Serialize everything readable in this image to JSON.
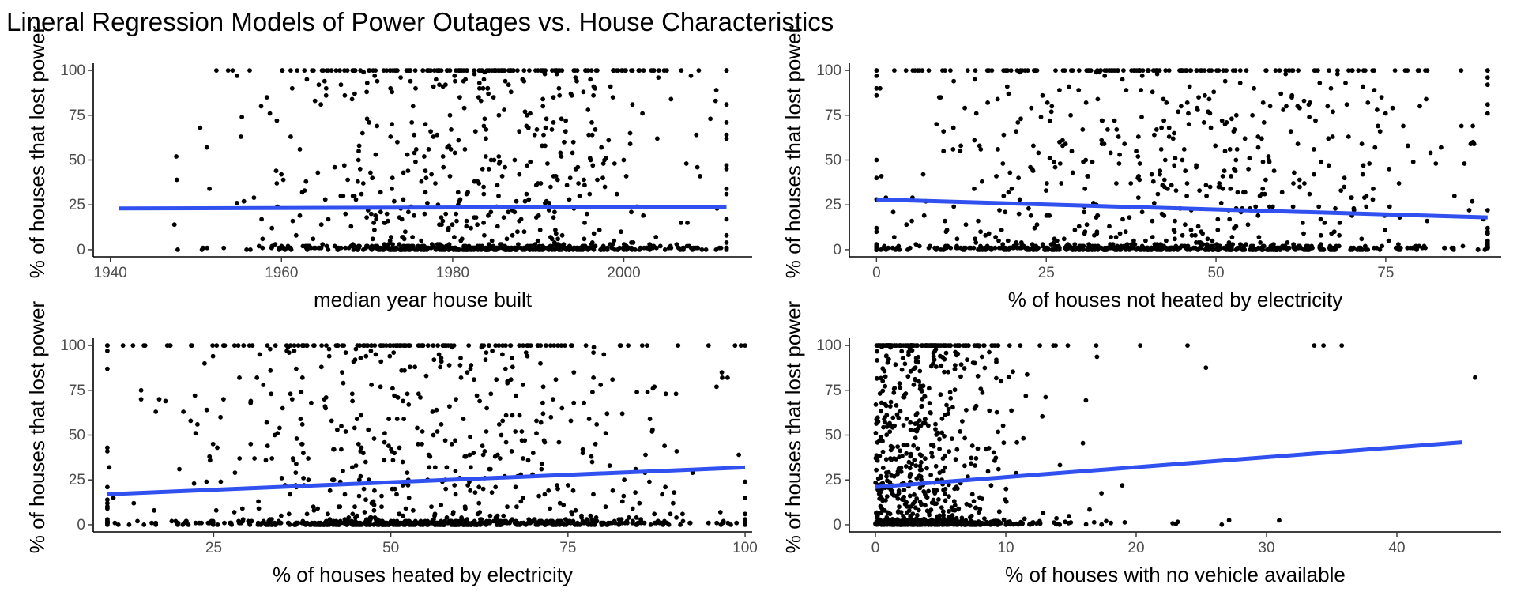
{
  "title": "Lineral Regression Models of Power Outages vs. House Characteristics",
  "chart_data": [
    {
      "type": "scatter",
      "xlabel": "median year house built",
      "ylabel": "% of houses that lost power",
      "xlim": [
        1938,
        2015
      ],
      "ylim": [
        -4,
        104
      ],
      "xticks": [
        1940,
        1960,
        1980,
        2000
      ],
      "yticks": [
        0,
        25,
        50,
        75,
        100
      ],
      "fit": {
        "x": [
          1941,
          2012
        ],
        "y": [
          23,
          24
        ],
        "color": "#3050f0"
      },
      "points": {
        "n": 1000,
        "x_range": [
          1941,
          2012
        ],
        "x_center": 1983,
        "x_spread": 14,
        "dist": "outage",
        "seed": 11
      },
      "grid": false
    },
    {
      "type": "scatter",
      "xlabel": "% of houses not heated by electricity",
      "ylabel": "% of houses that lost power",
      "xlim": [
        -4,
        92
      ],
      "ylim": [
        -4,
        104
      ],
      "xticks": [
        0,
        25,
        50,
        75
      ],
      "yticks": [
        0,
        25,
        50,
        75,
        100
      ],
      "fit": {
        "x": [
          0,
          90
        ],
        "y": [
          28,
          18
        ],
        "color": "#3050f0"
      },
      "points": {
        "n": 1100,
        "x_range": [
          0,
          90
        ],
        "x_center": 42,
        "x_spread": 22,
        "dist": "outage",
        "seed": 23
      },
      "grid": false
    },
    {
      "type": "scatter",
      "xlabel": "% of houses heated by electricity",
      "ylabel": "% of houses that lost power",
      "xlim": [
        8,
        101
      ],
      "ylim": [
        -4,
        104
      ],
      "xticks": [
        25,
        50,
        75,
        100
      ],
      "yticks": [
        0,
        25,
        50,
        75,
        100
      ],
      "fit": {
        "x": [
          10,
          100
        ],
        "y": [
          17,
          32
        ],
        "color": "#3050f0"
      },
      "points": {
        "n": 1100,
        "x_range": [
          10,
          100
        ],
        "x_center": 55,
        "x_spread": 20,
        "dist": "outage",
        "seed": 37
      },
      "grid": false
    },
    {
      "type": "scatter",
      "xlabel": "% of houses with no vehicle available",
      "ylabel": "% of houses that lost power",
      "xlim": [
        -2,
        48
      ],
      "ylim": [
        -4,
        104
      ],
      "xticks": [
        0,
        10,
        20,
        30,
        40
      ],
      "yticks": [
        0,
        25,
        50,
        75,
        100
      ],
      "fit": {
        "x": [
          0,
          45
        ],
        "y": [
          21,
          46
        ],
        "color": "#3050f0"
      },
      "points": {
        "n": 1100,
        "x_range": [
          0,
          46
        ],
        "x_center": 4,
        "x_spread": 5,
        "dist": "outage_skew",
        "seed": 51
      },
      "grid": false
    }
  ]
}
